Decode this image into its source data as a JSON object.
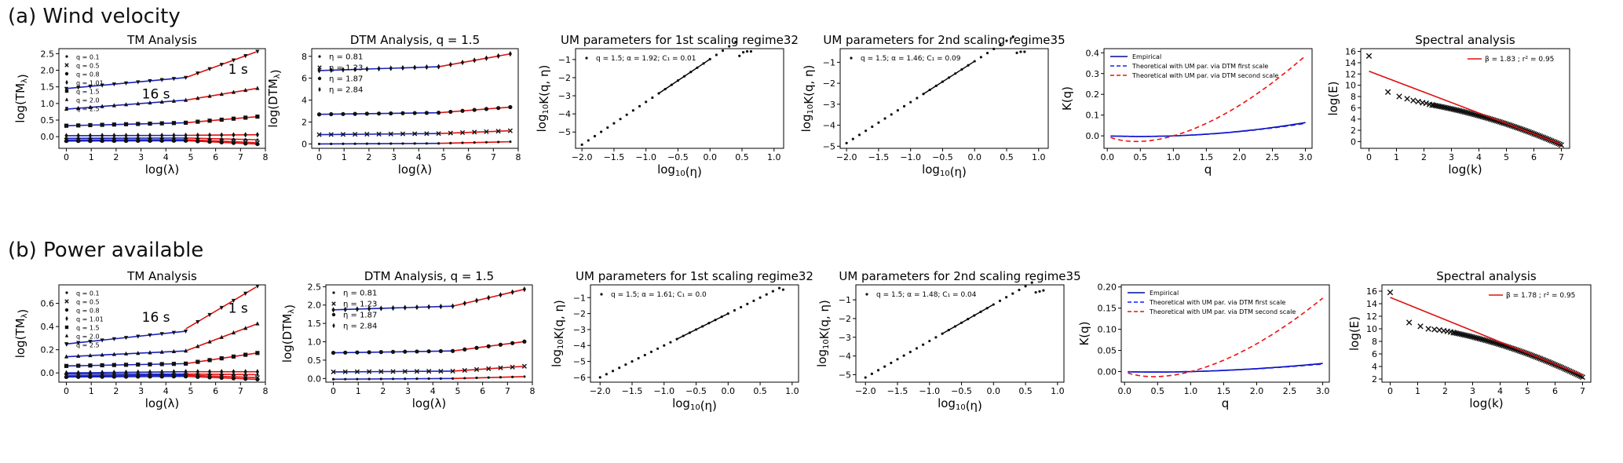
{
  "rows": [
    {
      "title": "(a) Wind velocity"
    },
    {
      "title": "(b) Power available"
    }
  ],
  "chart_data": [
    {
      "type": "line",
      "panel": "a1",
      "title": "TM Analysis",
      "xlabel": "log(λ)",
      "ylabel": "log(TM_λ)",
      "xlim": [
        -0.3,
        8
      ],
      "ylim": [
        -0.35,
        2.65
      ],
      "xticks": [
        0,
        1,
        2,
        3,
        4,
        5,
        6,
        7,
        8
      ],
      "yticks": [
        0.0,
        0.5,
        1.0,
        1.5,
        2.0,
        2.5
      ],
      "ytick_labels": [
        "0.0",
        "0.5",
        "1.0",
        "1.5",
        "2.0",
        "2.5"
      ],
      "legend": {
        "position": "top-left",
        "entries": [
          {
            "marker": "dot",
            "label": "q = 0.1"
          },
          {
            "marker": "x",
            "label": "q = 0.5"
          },
          {
            "marker": "circle",
            "label": "q = 0.8"
          },
          {
            "marker": "diamond",
            "label": "q = 1.01"
          },
          {
            "marker": "square",
            "label": "q = 1.5"
          },
          {
            "marker": "triangle-up",
            "label": "q = 2.0"
          },
          {
            "marker": "triangle-down",
            "label": "q = 2.5"
          }
        ]
      },
      "annotations": [
        {
          "text": "1 s",
          "x": 6.9,
          "y": 1.9
        },
        {
          "text": "16 s",
          "x": 3.6,
          "y": 1.15
        }
      ],
      "series": [
        {
          "marker": "dot",
          "blue": [
            -0.05,
            -0.04
          ],
          "red": [
            -0.04,
            -0.09
          ]
        },
        {
          "marker": "x",
          "blue": [
            -0.1,
            -0.09
          ],
          "red": [
            -0.09,
            -0.18
          ]
        },
        {
          "marker": "circle",
          "blue": [
            -0.13,
            -0.12
          ],
          "red": [
            -0.12,
            -0.22
          ]
        },
        {
          "marker": "diamond",
          "blue": [
            0.03,
            0.04
          ],
          "red": [
            0.04,
            0.06
          ]
        },
        {
          "marker": "square",
          "blue": [
            0.33,
            0.42
          ],
          "red": [
            0.42,
            0.6
          ]
        },
        {
          "marker": "triangle-up",
          "blue": [
            0.83,
            1.1
          ],
          "red": [
            1.1,
            1.45
          ]
        },
        {
          "marker": "triangle-down",
          "blue": [
            1.45,
            1.78
          ],
          "red": [
            1.78,
            2.55
          ]
        }
      ]
    },
    {
      "type": "line",
      "panel": "a2",
      "title": "DTM Analysis, q = 1.5",
      "xlabel": "log(λ)",
      "ylabel": "log(DTM_λ)",
      "xlim": [
        -0.3,
        8
      ],
      "ylim": [
        -0.4,
        8.7
      ],
      "xticks": [
        0,
        1,
        2,
        3,
        4,
        5,
        6,
        7,
        8
      ],
      "yticks": [
        0,
        2,
        4,
        6,
        8
      ],
      "ytick_labels": [
        "0",
        "2",
        "4",
        "6",
        "8"
      ],
      "legend": {
        "position": "top-left",
        "entries": [
          {
            "marker": "dot",
            "label": "η = 0.81"
          },
          {
            "marker": "x",
            "label": "η = 1.23"
          },
          {
            "marker": "circle",
            "label": "η = 1.87"
          },
          {
            "marker": "diamond",
            "label": "η = 2.84"
          }
        ]
      },
      "annotations": [],
      "series": [
        {
          "marker": "dot",
          "blue": [
            0.0,
            0.05
          ],
          "red": [
            0.05,
            0.2
          ]
        },
        {
          "marker": "x",
          "blue": [
            0.85,
            0.95
          ],
          "red": [
            0.95,
            1.2
          ]
        },
        {
          "marker": "circle",
          "blue": [
            2.7,
            2.85
          ],
          "red": [
            2.85,
            3.35
          ]
        },
        {
          "marker": "diamond",
          "blue": [
            6.7,
            7.05
          ],
          "red": [
            7.05,
            8.2
          ]
        }
      ]
    },
    {
      "type": "scatter",
      "panel": "a3",
      "title": "UM parameters for 1st scaling regime32",
      "xlabel": "log10(η)",
      "ylabel": "log10K(q, η)",
      "xlim": [
        -2.1,
        1.15
      ],
      "ylim": [
        -5.9,
        -0.4
      ],
      "xticks": [
        -2.0,
        -1.5,
        -1.0,
        -0.5,
        0.0,
        0.5,
        1.0
      ],
      "yticks": [
        -5,
        -4,
        -3,
        -2,
        -1
      ],
      "xtick_labels": [
        "−2.0",
        "−1.5",
        "−1.0",
        "−0.5",
        "0.0",
        "0.5",
        "1.0"
      ],
      "ytick_labels": [
        "−5",
        "−4",
        "−3",
        "−2",
        "−1"
      ],
      "legend_text": "q = 1.5; α = 1.92; C₁ = 0.01",
      "points": {
        "x0": -2.0,
        "dx": 0.1,
        "count": 25,
        "y0": -5.7,
        "slope": 2.36,
        "tail": [
          -0.8,
          -0.6,
          -0.55,
          -0.55
        ]
      }
    },
    {
      "type": "scatter",
      "panel": "a4",
      "title": "UM parameters for 2nd scaling regime35",
      "xlabel": "log10(η)",
      "ylabel": "log10K(q, η)",
      "xlim": [
        -2.1,
        1.15
      ],
      "ylim": [
        -5.1,
        -0.35
      ],
      "xticks": [
        -2.0,
        -1.5,
        -1.0,
        -0.5,
        0.0,
        0.5,
        1.0
      ],
      "yticks": [
        -5,
        -4,
        -3,
        -2,
        -1
      ],
      "xtick_labels": [
        "−2.0",
        "−1.5",
        "−1.0",
        "−0.5",
        "0.0",
        "0.5",
        "1.0"
      ],
      "ytick_labels": [
        "−5",
        "−4",
        "−3",
        "−2",
        "−1"
      ],
      "legend_text": "q = 1.5; α = 1.46; C₁ = 0.09",
      "points": {
        "x0": -2.0,
        "dx": 0.1,
        "count": 27,
        "y0": -4.85,
        "slope": 1.95,
        "tail": [
          -0.55,
          -0.5,
          -0.5
        ]
      }
    },
    {
      "type": "line",
      "panel": "a5",
      "title": "",
      "xlabel": "q",
      "ylabel": "K(q)",
      "xlim": [
        -0.05,
        3.1
      ],
      "ylim": [
        -0.06,
        0.42
      ],
      "xticks": [
        0.0,
        0.5,
        1.0,
        1.5,
        2.0,
        2.5,
        3.0
      ],
      "yticks": [
        0.0,
        0.1,
        0.2,
        0.3,
        0.4
      ],
      "xtick_labels": [
        "0.0",
        "0.5",
        "1.0",
        "1.5",
        "2.0",
        "2.5",
        "3.0"
      ],
      "ytick_labels": [
        "0.0",
        "0.1",
        "0.2",
        "0.3",
        "0.4"
      ],
      "legend": {
        "position": "top-left",
        "entries": [
          {
            "style": "solid",
            "color": "#000a99",
            "label": "Empirical"
          },
          {
            "style": "dashed",
            "color": "#1a1aff",
            "label": "Theoretical with UM par. via DTM first scale"
          },
          {
            "style": "dashed",
            "color": "#ee1111",
            "label": "Theoretical with UM par. via DTM second scale"
          }
        ]
      },
      "curves": {
        "empirical": {
          "C1": 0.011,
          "alpha": 1.95,
          "scale": 1.0
        },
        "first": {
          "C1": 0.011,
          "alpha": 1.92,
          "scale": 0.96
        },
        "second": {
          "C1": 0.09,
          "alpha": 1.46,
          "scale": 1.0
        }
      }
    },
    {
      "type": "scatter",
      "panel": "a6",
      "title": "Spectral analysis",
      "xlabel": "log(k)",
      "ylabel": "log(E)",
      "xlim": [
        -0.3,
        7.3
      ],
      "ylim": [
        -1.2,
        16.5
      ],
      "xticks": [
        0,
        1,
        2,
        3,
        4,
        5,
        6,
        7
      ],
      "yticks": [
        0,
        2,
        4,
        6,
        8,
        10,
        12,
        14,
        16
      ],
      "legend_text": "β = 1.83 ; r² = 0.95",
      "fit": {
        "x": [
          0,
          7
        ],
        "y": [
          12.5,
          -0.5
        ]
      },
      "points_x": [
        0.0,
        0.69,
        1.1,
        1.39,
        1.61,
        1.79,
        1.95,
        2.08,
        2.2,
        2.3
      ],
      "points_y": [
        15.2,
        8.8,
        8.0,
        7.6,
        7.3,
        7.1,
        6.9,
        6.8,
        6.6,
        6.5
      ],
      "band": {
        "x0": 2.3,
        "x1": 7.0,
        "y0": 6.5,
        "y1": -0.6
      }
    },
    {
      "type": "line",
      "panel": "b1",
      "title": "TM Analysis",
      "xlabel": "log(λ)",
      "ylabel": "log(TM_λ)",
      "xlim": [
        -0.3,
        8
      ],
      "ylim": [
        -0.08,
        0.76
      ],
      "xticks": [
        0,
        1,
        2,
        3,
        4,
        5,
        6,
        7,
        8
      ],
      "yticks": [
        0.0,
        0.2,
        0.4,
        0.6
      ],
      "ytick_labels": [
        "0.0",
        "0.2",
        "0.4",
        "0.6"
      ],
      "legend": {
        "position": "top-left",
        "entries": [
          {
            "marker": "dot",
            "label": "q = 0.1"
          },
          {
            "marker": "x",
            "label": "q = 0.5"
          },
          {
            "marker": "circle",
            "label": "q = 0.8"
          },
          {
            "marker": "diamond",
            "label": "q = 1.01"
          },
          {
            "marker": "square",
            "label": "q = 1.5"
          },
          {
            "marker": "triangle-up",
            "label": "q = 2.0"
          },
          {
            "marker": "triangle-down",
            "label": "q = 2.5"
          }
        ]
      },
      "annotations": [
        {
          "text": "16 s",
          "x": 3.6,
          "y": 0.44
        },
        {
          "text": "1 s",
          "x": 6.9,
          "y": 0.52
        }
      ],
      "series": [
        {
          "marker": "dot",
          "blue": [
            -0.01,
            -0.01
          ],
          "red": [
            -0.01,
            -0.015
          ]
        },
        {
          "marker": "x",
          "blue": [
            -0.025,
            -0.02
          ],
          "red": [
            -0.02,
            -0.04
          ]
        },
        {
          "marker": "circle",
          "blue": [
            -0.035,
            -0.03
          ],
          "red": [
            -0.03,
            -0.055
          ]
        },
        {
          "marker": "diamond",
          "blue": [
            0.0,
            0.01
          ],
          "red": [
            0.01,
            0.01
          ]
        },
        {
          "marker": "square",
          "blue": [
            0.06,
            0.08
          ],
          "red": [
            0.08,
            0.17
          ]
        },
        {
          "marker": "triangle-up",
          "blue": [
            0.14,
            0.19
          ],
          "red": [
            0.19,
            0.42
          ]
        },
        {
          "marker": "triangle-down",
          "blue": [
            0.25,
            0.36
          ],
          "red": [
            0.38,
            0.74
          ]
        }
      ]
    },
    {
      "type": "line",
      "panel": "b2",
      "title": "DTM Analysis, q = 1.5",
      "xlabel": "log(λ)",
      "ylabel": "log(DTM_λ)",
      "xlim": [
        -0.3,
        8
      ],
      "ylim": [
        -0.1,
        2.55
      ],
      "xticks": [
        0,
        1,
        2,
        3,
        4,
        5,
        6,
        7,
        8
      ],
      "yticks": [
        0.0,
        0.5,
        1.0,
        1.5,
        2.0,
        2.5
      ],
      "ytick_labels": [
        "0.0",
        "0.5",
        "1.0",
        "1.5",
        "2.0",
        "2.5"
      ],
      "legend": {
        "position": "top-left",
        "entries": [
          {
            "marker": "dot",
            "label": "η = 0.81"
          },
          {
            "marker": "x",
            "label": "η = 1.23"
          },
          {
            "marker": "circle",
            "label": "η = 1.87"
          },
          {
            "marker": "diamond",
            "label": "η = 2.84"
          }
        ]
      },
      "annotations": [],
      "series": [
        {
          "marker": "dot",
          "blue": [
            -0.02,
            0.0
          ],
          "red": [
            0.0,
            0.05
          ]
        },
        {
          "marker": "x",
          "blue": [
            0.18,
            0.2
          ],
          "red": [
            0.2,
            0.33
          ]
        },
        {
          "marker": "circle",
          "blue": [
            0.7,
            0.75
          ],
          "red": [
            0.75,
            1.0
          ]
        },
        {
          "marker": "diamond",
          "blue": [
            1.87,
            1.97
          ],
          "red": [
            1.97,
            2.42
          ]
        }
      ]
    },
    {
      "type": "scatter",
      "panel": "b3",
      "title": "UM parameters for 1st scaling regime32",
      "xlabel": "log10(η)",
      "ylabel": "log10K(q, η)",
      "xlim": [
        -2.15,
        1.1
      ],
      "ylim": [
        -6.3,
        -0.2
      ],
      "xticks": [
        -2.0,
        -1.5,
        -1.0,
        -0.5,
        0.0,
        0.5,
        1.0
      ],
      "yticks": [
        -6,
        -5,
        -4,
        -3,
        -2,
        -1
      ],
      "xtick_labels": [
        "−2.0",
        "−1.5",
        "−1.0",
        "−0.5",
        "0.0",
        "0.5",
        "1.0"
      ],
      "ytick_labels": [
        "−6",
        "−5",
        "−4",
        "−3",
        "−2",
        "−1"
      ],
      "legend_text": "q = 1.5; α = 1.61; C₁ = 0.0",
      "points": {
        "x0": -2.0,
        "dx": 0.1,
        "count": 29,
        "y0": -6.0,
        "slope": 2.0,
        "tail": [
          -0.5
        ]
      }
    },
    {
      "type": "scatter",
      "panel": "b4",
      "title": "UM parameters for 2nd scaling regime35",
      "xlabel": "log10(η)",
      "ylabel": "log10K(q, η)",
      "xlim": [
        -2.15,
        1.1
      ],
      "ylim": [
        -5.4,
        -0.2
      ],
      "xticks": [
        -2.0,
        -1.5,
        -1.0,
        -0.5,
        0.0,
        0.5,
        1.0
      ],
      "yticks": [
        -5,
        -4,
        -3,
        -2,
        -1
      ],
      "xtick_labels": [
        "−2.0",
        "−1.5",
        "−1.0",
        "−0.5",
        "0.0",
        "0.5",
        "1.0"
      ],
      "ytick_labels": [
        "−5",
        "−4",
        "−3",
        "−2",
        "−1"
      ],
      "legend_text": "q = 1.5; α = 1.48; C₁ = 0.04",
      "points": {
        "x0": -2.0,
        "dx": 0.1,
        "count": 27,
        "y0": -5.15,
        "slope": 1.95,
        "tail": [
          -0.6,
          -0.55,
          -0.5
        ]
      }
    },
    {
      "type": "line",
      "panel": "b5",
      "title": "",
      "xlabel": "q",
      "ylabel": "K(q)",
      "xlim": [
        -0.05,
        3.1
      ],
      "ylim": [
        -0.025,
        0.205
      ],
      "xticks": [
        0.0,
        0.5,
        1.0,
        1.5,
        2.0,
        2.5,
        3.0
      ],
      "yticks": [
        0.0,
        0.05,
        0.1,
        0.15,
        0.2
      ],
      "xtick_labels": [
        "0.0",
        "0.5",
        "1.0",
        "1.5",
        "2.0",
        "2.5",
        "3.0"
      ],
      "ytick_labels": [
        "0.00",
        "0.05",
        "0.10",
        "0.15",
        "0.20"
      ],
      "legend": {
        "position": "top-left",
        "entries": [
          {
            "style": "solid",
            "color": "#000a99",
            "label": "Empirical"
          },
          {
            "style": "dashed",
            "color": "#1a1aff",
            "label": "Theoretical with UM par. via DTM first scale"
          },
          {
            "style": "dashed",
            "color": "#ee1111",
            "label": "Theoretical with UM par. via DTM second scale"
          }
        ]
      },
      "curves": {
        "empirical": {
          "C1": 0.004,
          "alpha": 1.65,
          "scale": 1.0
        },
        "first": {
          "C1": 0.004,
          "alpha": 1.61,
          "scale": 0.95
        },
        "second": {
          "C1": 0.04,
          "alpha": 1.48,
          "scale": 1.0
        }
      }
    },
    {
      "type": "scatter",
      "panel": "b6",
      "title": "Spectral analysis",
      "xlabel": "log(k)",
      "ylabel": "log(E)",
      "xlim": [
        -0.3,
        7.3
      ],
      "ylim": [
        1.5,
        17
      ],
      "xticks": [
        0,
        1,
        2,
        3,
        4,
        5,
        6,
        7
      ],
      "yticks": [
        2,
        4,
        6,
        8,
        10,
        12,
        14,
        16
      ],
      "legend_text": "β = 1.78 ; r² = 0.95",
      "fit": {
        "x": [
          0,
          7
        ],
        "y": [
          15.0,
          2.6
        ]
      },
      "points_x": [
        0.0,
        0.69,
        1.1,
        1.39,
        1.61,
        1.79,
        1.95,
        2.08,
        2.2,
        2.3
      ],
      "points_y": [
        15.8,
        11.0,
        10.4,
        10.0,
        9.9,
        9.8,
        9.7,
        9.6,
        9.5,
        9.4
      ],
      "band": {
        "x0": 2.3,
        "x1": 7.0,
        "y0": 9.4,
        "y1": 2.3
      }
    }
  ]
}
